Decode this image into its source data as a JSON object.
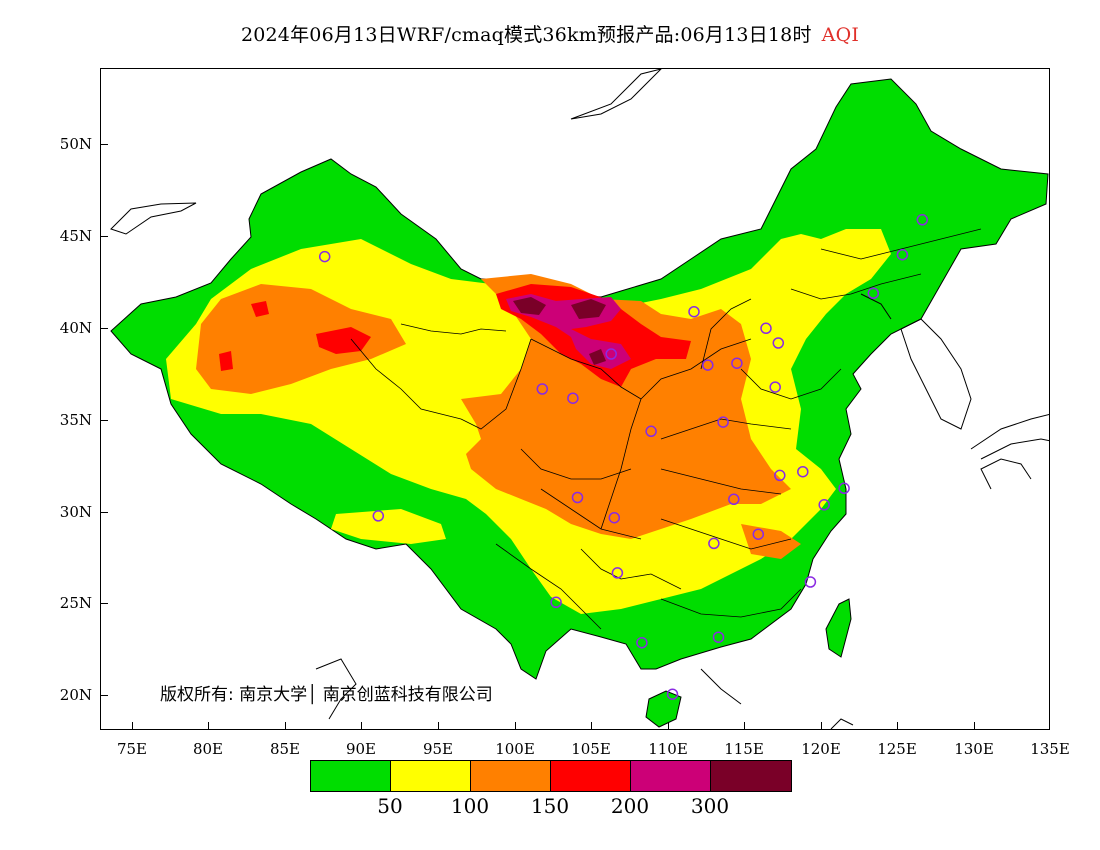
{
  "title": {
    "main": "2024年06月13日WRF/cmaq模式36km预报产品:06月13日18时",
    "variable": "AQI",
    "variable_color": "#e0302a"
  },
  "axes": {
    "lat_labels": [
      "50N",
      "45N",
      "40N",
      "35N",
      "30N",
      "25N",
      "20N"
    ],
    "lon_labels": [
      "75E",
      "80E",
      "85E",
      "90E",
      "95E",
      "100E",
      "105E",
      "110E",
      "115E",
      "120E",
      "125E",
      "130E",
      "135E"
    ]
  },
  "copyright": "版权所有: 南京大学│ 南京创蓝科技有限公司",
  "legend": {
    "colors": [
      "#00dd00",
      "#ffff00",
      "#ff8000",
      "#ff0000",
      "#cc0077",
      "#7a0028"
    ],
    "labels": [
      "50",
      "100",
      "150",
      "200",
      "300"
    ]
  },
  "colors": {
    "good": "#00dd00",
    "moderate": "#ffff00",
    "sensitive": "#ff8000",
    "unhealthy": "#ff0000",
    "very_unhealthy": "#cc0077",
    "hazardous": "#7a0028",
    "station_marker": "#8a2be2"
  },
  "map_data": {
    "extent": {
      "lon": [
        73,
        135
      ],
      "lat": [
        18,
        54
      ]
    },
    "stations": [
      [
        87.6,
        43.8
      ],
      [
        91.1,
        29.7
      ],
      [
        101.8,
        36.6
      ],
      [
        103.8,
        36.1
      ],
      [
        106.3,
        38.5
      ],
      [
        111.7,
        40.8
      ],
      [
        112.6,
        37.9
      ],
      [
        114.5,
        38.0
      ],
      [
        116.4,
        39.9
      ],
      [
        117.2,
        39.1
      ],
      [
        117.0,
        36.7
      ],
      [
        113.6,
        34.8
      ],
      [
        108.9,
        34.3
      ],
      [
        104.1,
        30.7
      ],
      [
        106.5,
        29.6
      ],
      [
        114.3,
        30.6
      ],
      [
        117.3,
        31.9
      ],
      [
        118.8,
        32.1
      ],
      [
        120.2,
        30.3
      ],
      [
        121.5,
        31.2
      ],
      [
        115.9,
        28.7
      ],
      [
        113.0,
        28.2
      ],
      [
        106.7,
        26.6
      ],
      [
        102.7,
        25.0
      ],
      [
        108.3,
        22.8
      ],
      [
        113.3,
        23.1
      ],
      [
        119.3,
        26.1
      ],
      [
        110.3,
        20.0
      ],
      [
        123.4,
        41.8
      ],
      [
        125.3,
        43.9
      ],
      [
        126.6,
        45.8
      ]
    ]
  }
}
